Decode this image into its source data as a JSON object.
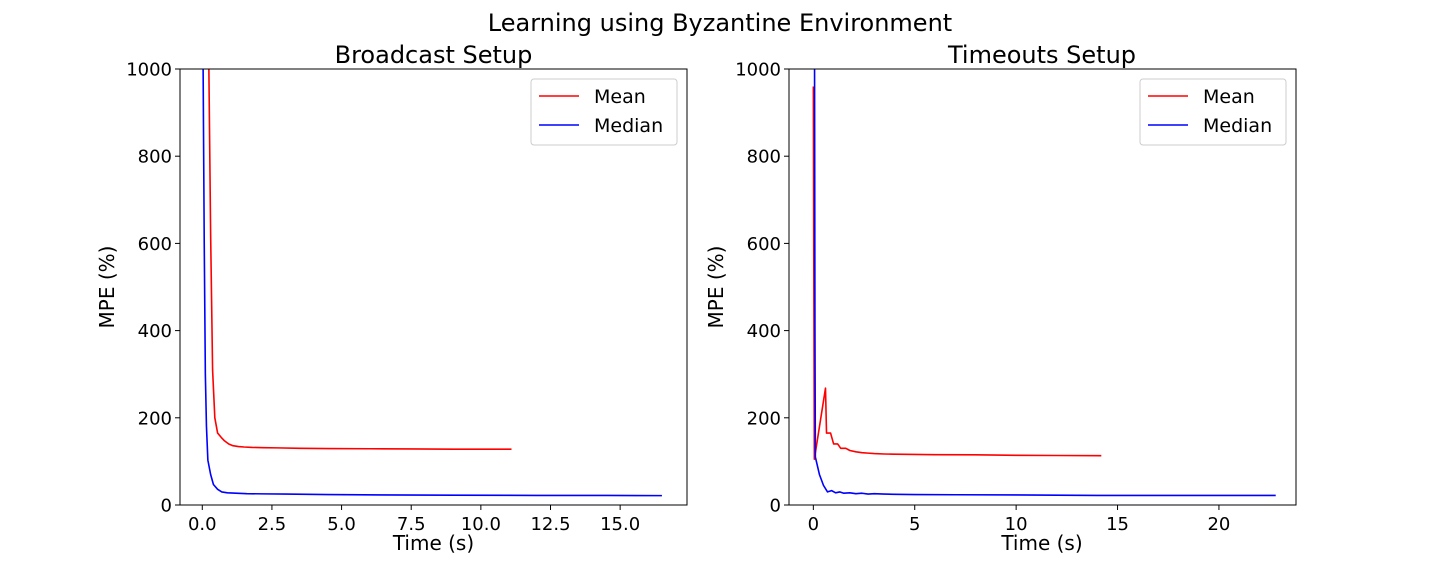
{
  "figure": {
    "suptitle": "Learning using Byzantine Environment"
  },
  "chart_data": [
    {
      "type": "line",
      "title": "Broadcast Setup",
      "xlabel": "Time (s)",
      "ylabel": "MPE (%)",
      "xlim": [
        -0.8,
        17.4
      ],
      "ylim": [
        0,
        1000
      ],
      "xticks": [
        0.0,
        2.5,
        5.0,
        7.5,
        10.0,
        12.5,
        15.0
      ],
      "xtick_labels": [
        "0.0",
        "2.5",
        "5.0",
        "7.5",
        "10.0",
        "12.5",
        "15.0"
      ],
      "yticks": [
        0,
        200,
        400,
        600,
        800,
        1000
      ],
      "ytick_labels": [
        "0",
        "200",
        "400",
        "600",
        "800",
        "1000"
      ],
      "legend": "upper right",
      "grid": false,
      "series": [
        {
          "name": "Mean",
          "color": "#ff0000",
          "x": [
            0.17,
            0.23,
            0.3,
            0.37,
            0.45,
            0.55,
            0.68,
            0.8,
            0.95,
            1.1,
            1.3,
            1.5,
            1.8,
            2.2,
            2.7,
            3.5,
            4.5,
            6.0,
            7.5,
            9.0,
            11.1
          ],
          "y": [
            1300,
            1040,
            620,
            310,
            200,
            165,
            155,
            147,
            140,
            136,
            134,
            133,
            132,
            131.5,
            131,
            130,
            129.5,
            129,
            128.5,
            128,
            128
          ]
        },
        {
          "name": "Median",
          "color": "#0000ff",
          "x": [
            0.0,
            0.03,
            0.07,
            0.11,
            0.15,
            0.2,
            0.3,
            0.4,
            0.55,
            0.7,
            0.9,
            1.2,
            1.6,
            2.2,
            3.0,
            4.5,
            6.5,
            9.0,
            12.0,
            14.5,
            16.5
          ],
          "y": [
            1300,
            1000,
            600,
            300,
            180,
            103,
            70,
            47,
            36,
            30,
            28,
            27,
            26,
            25.5,
            25,
            24,
            23,
            22.5,
            22,
            22,
            21.5
          ]
        }
      ]
    },
    {
      "type": "line",
      "title": "Timeouts Setup",
      "xlabel": "Time (s)",
      "ylabel": "MPE (%)",
      "xlim": [
        -1.2,
        23.8
      ],
      "ylim": [
        0,
        1000
      ],
      "xticks": [
        0,
        5,
        10,
        15,
        20
      ],
      "xtick_labels": [
        "0",
        "5",
        "10",
        "15",
        "20"
      ],
      "yticks": [
        0,
        200,
        400,
        600,
        800,
        1000
      ],
      "ytick_labels": [
        "0",
        "200",
        "400",
        "600",
        "800",
        "1000"
      ],
      "legend": "upper right",
      "grid": false,
      "series": [
        {
          "name": "Mean",
          "color": "#ff0000",
          "x": [
            0.0,
            0.02,
            0.05,
            0.6,
            0.65,
            0.85,
            1.0,
            1.2,
            1.35,
            1.6,
            1.8,
            2.1,
            2.4,
            2.7,
            3.0,
            3.5,
            4.0,
            5.0,
            6.0,
            8.0,
            10.0,
            12.0,
            14.2
          ],
          "y": [
            960,
            600,
            105,
            268,
            165,
            165,
            140,
            140,
            130,
            130,
            125,
            122,
            120,
            119,
            118,
            117,
            116.5,
            116,
            115.5,
            115,
            114,
            113.5,
            113
          ]
        },
        {
          "name": "Median",
          "color": "#0000ff",
          "x": [
            0.05,
            0.08,
            0.1,
            0.15,
            0.3,
            0.5,
            0.7,
            0.9,
            1.1,
            1.3,
            1.5,
            1.8,
            2.1,
            2.4,
            2.7,
            3.0,
            3.5,
            4.0,
            5.0,
            7.0,
            10.0,
            14.0,
            18.0,
            22.8
          ],
          "y": [
            1300,
            400,
            110,
            100,
            70,
            45,
            30,
            33,
            28,
            30,
            27,
            28,
            26,
            27,
            25,
            26,
            25,
            24.5,
            24,
            23.5,
            23,
            22,
            22,
            22
          ]
        }
      ]
    }
  ]
}
